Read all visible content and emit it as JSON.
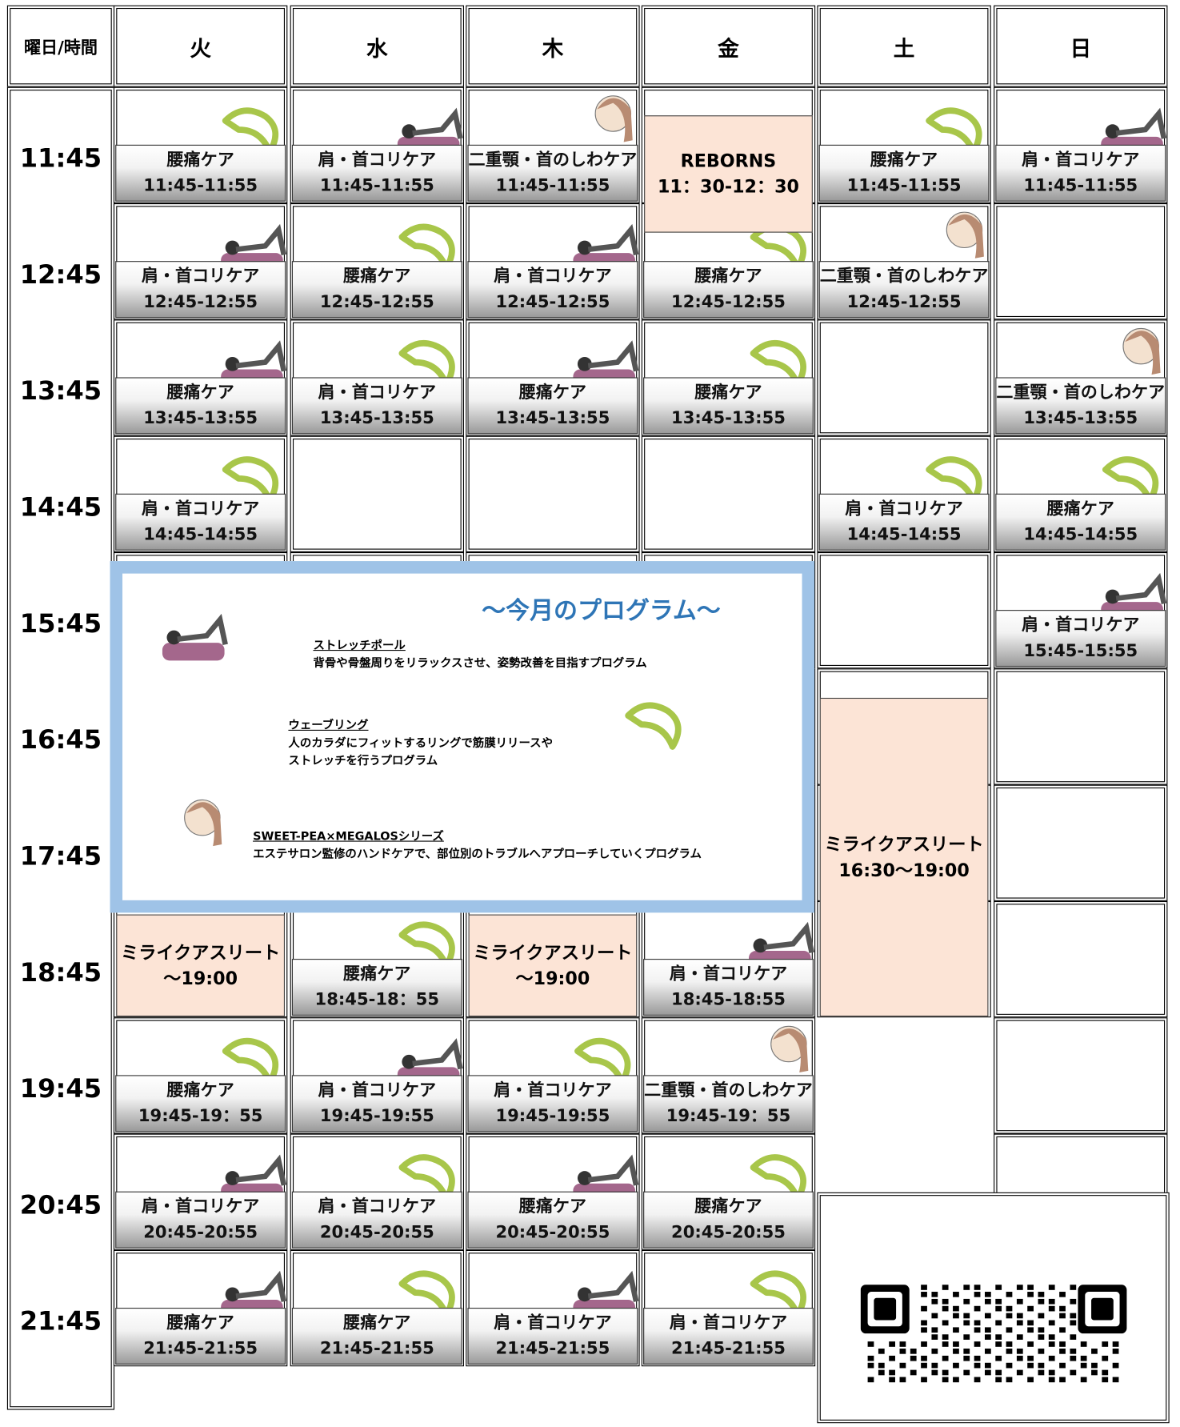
{
  "header": {
    "corner": "曜日/時間",
    "days": [
      "火",
      "水",
      "木",
      "金",
      "土",
      "日"
    ]
  },
  "times": [
    "11:45",
    "12:45",
    "13:45",
    "14:45",
    "15:45",
    "16:45",
    "17:45",
    "18:45",
    "19:45",
    "20:45",
    "21:45"
  ],
  "rows": [
    [
      {
        "name": "腰痛ケア",
        "time": "11:45-11:55"
      },
      {
        "name": "肩・首コリケア",
        "time": "11:45-11:55"
      },
      {
        "name": "二重顎・首のしわケア",
        "time": "11:45-11:55"
      },
      null,
      {
        "name": "腰痛ケア",
        "time": "11:45-11:55"
      },
      {
        "name": "肩・首コリケア",
        "time": "11:45-11:55"
      }
    ],
    [
      {
        "name": "肩・首コリケア",
        "time": "12:45-12:55"
      },
      {
        "name": "腰痛ケア",
        "time": "12:45-12:55"
      },
      {
        "name": "肩・首コリケア",
        "time": "12:45-12:55"
      },
      {
        "name": "腰痛ケア",
        "time": "12:45-12:55"
      },
      {
        "name": "二重顎・首のしわケア",
        "time": "12:45-12:55"
      },
      null
    ],
    [
      {
        "name": "腰痛ケア",
        "time": "13:45-13:55"
      },
      {
        "name": "肩・首コリケア",
        "time": "13:45-13:55"
      },
      {
        "name": "腰痛ケア",
        "time": "13:45-13:55"
      },
      {
        "name": "腰痛ケア",
        "time": "13:45-13:55"
      },
      null,
      {
        "name": "二重顎・首のしわケア",
        "time": "13:45-13:55"
      }
    ],
    [
      {
        "name": "肩・首コリケア",
        "time": "14:45-14:55"
      },
      null,
      null,
      null,
      {
        "name": "肩・首コリケア",
        "time": "14:45-14:55"
      },
      {
        "name": "腰痛ケア",
        "time": "14:45-14:55"
      }
    ],
    [
      null,
      null,
      null,
      null,
      null,
      {
        "name": "肩・首コリケア",
        "time": "15:45-15:55"
      }
    ],
    [
      null,
      null,
      null,
      null,
      null,
      null
    ],
    [
      null,
      null,
      null,
      null,
      null,
      null
    ],
    [
      null,
      {
        "name": "腰痛ケア",
        "time": "18:45-18：55"
      },
      null,
      {
        "name": "肩・首コリケア",
        "time": "18:45-18:55"
      },
      null,
      null
    ],
    [
      {
        "name": "腰痛ケア",
        "time": "19:45-19：55"
      },
      {
        "name": "肩・首コリケア",
        "time": "19:45-19:55"
      },
      {
        "name": "肩・首コリケア",
        "time": "19:45-19:55"
      },
      {
        "name": "二重顎・首のしわケア",
        "time": "19:45-19：55"
      },
      null,
      null
    ],
    [
      {
        "name": "肩・首コリケア",
        "time": "20:45-20:55"
      },
      {
        "name": "肩・首コリケア",
        "time": "20:45-20:55"
      },
      {
        "name": "腰痛ケア",
        "time": "20:45-20:55"
      },
      {
        "name": "腰痛ケア",
        "time": "20:45-20:55"
      },
      null,
      null
    ],
    [
      {
        "name": "腰痛ケア",
        "time": "21:45-21:55"
      },
      {
        "name": "腰痛ケア",
        "time": "21:45-21:55"
      },
      {
        "name": "肩・首コリケア",
        "time": "21:45-21:55"
      },
      {
        "name": "肩・首コリケア",
        "time": "21:45-21:55"
      },
      null,
      null
    ]
  ],
  "blocks": [
    {
      "name": "REBORNS",
      "time": "11：30-12：30"
    },
    {
      "name": "ミライクアスリート",
      "time": "～19:00"
    },
    {
      "name": "ミライクアスリート",
      "time": "～19:00"
    },
    {
      "name": "ミライクアスリート",
      "time": "16:30～19:00"
    }
  ],
  "programs": {
    "title": "～今月のプログラム～",
    "items": [
      {
        "name": "ストレッチポール",
        "lines": [
          "背骨や骨盤周りをリラックスさせ、姿勢改善を目指すプログラム"
        ]
      },
      {
        "name": "ウェーブリング",
        "lines": [
          "人のカラダにフィットするリングで筋膜リリースや",
          "ストレッチを行うプログラム"
        ]
      },
      {
        "name": "SWEET-PEA×MEGALOSシリーズ",
        "lines": [
          "エステサロン監修のハンドケアで、部位別のトラブルへアプローチしていくプログラム"
        ]
      }
    ]
  }
}
